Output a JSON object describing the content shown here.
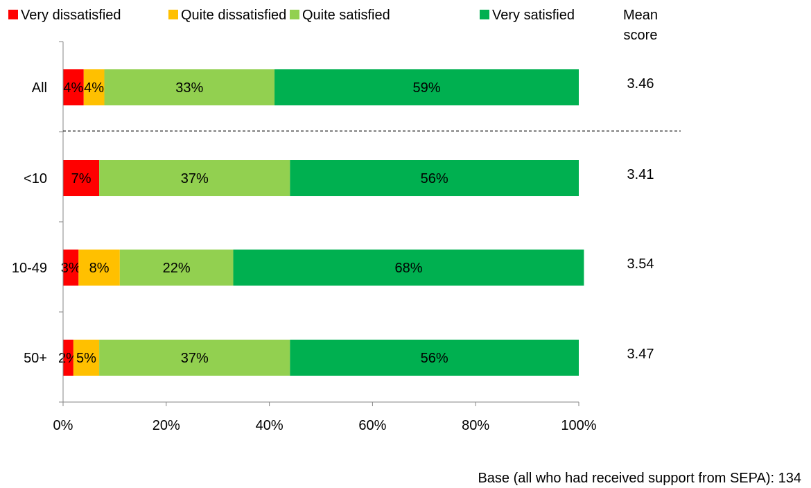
{
  "chart_data": {
    "type": "bar",
    "orientation": "horizontal",
    "stacked": true,
    "categories": [
      "All",
      "<10",
      "10-49",
      "50+"
    ],
    "series": [
      {
        "name": "Very dissatisfied",
        "color": "#ff0000",
        "values": [
          4,
          7,
          3,
          2
        ],
        "labels": [
          "4%",
          "7%",
          "3%",
          "2%"
        ]
      },
      {
        "name": "Quite dissatisfied",
        "color": "#ffc000",
        "values": [
          4,
          0,
          8,
          5
        ],
        "labels": [
          "4%",
          "",
          "8%",
          "5%"
        ]
      },
      {
        "name": "Quite satisfied",
        "color": "#92d050",
        "values": [
          33,
          37,
          22,
          37
        ],
        "labels": [
          "33%",
          "37%",
          "22%",
          "37%"
        ]
      },
      {
        "name": "Very satisfied",
        "color": "#00b050",
        "values": [
          59,
          56,
          68,
          56
        ],
        "labels": [
          "59%",
          "56%",
          "68%",
          "56%"
        ]
      }
    ],
    "xlim": [
      0,
      100
    ],
    "x_ticks": [
      "0%",
      "20%",
      "40%",
      "60%",
      "80%",
      "100%"
    ],
    "legend_position": "top",
    "mean_score_header": [
      "Mean",
      "score"
    ],
    "mean_scores": [
      "3.46",
      "3.41",
      "3.54",
      "3.47"
    ],
    "grid": false,
    "separator_after_category": "All"
  },
  "base_note": "Base (all who had received support from SEPA): 134"
}
